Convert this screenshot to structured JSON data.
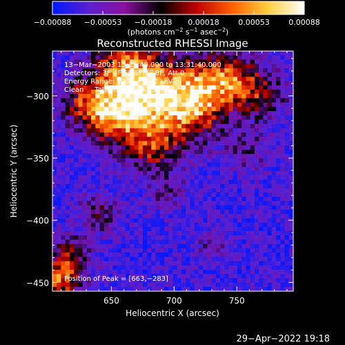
{
  "chart_data": {
    "type": "heatmap",
    "title": "Reconstructed RHESSI Image",
    "xlabel": "Heliocentric X (arcsec)",
    "ylabel": "Heliocentric Y (arcsec)",
    "xlim": [
      603,
      795
    ],
    "ylim": [
      -457,
      -264
    ],
    "xticks": [
      650,
      700,
      750
    ],
    "yticks": [
      -300,
      -350,
      -400,
      -450
    ],
    "xticklabels": [
      "650",
      "700",
      "750"
    ],
    "yticklabels": [
      "−300",
      "−350",
      "−400",
      "−450"
    ],
    "colorbar": {
      "range": [
        -0.00088,
        0.00088
      ],
      "ticks": [
        "−0.00088",
        "−0.00053",
        "−0.00018",
        "0.00018",
        "0.00053",
        "0.00088"
      ],
      "label_main": "(photons cm",
      "label_exp1": "−2",
      "label_mid1": " s",
      "label_exp2": "−1",
      "label_mid2": " asec",
      "label_exp3": "−2",
      "label_end": ")",
      "colors": [
        "#0018ff",
        "#5a20d0",
        "#8a10a0",
        "#000000",
        "#c00000",
        "#ff6000",
        "#ffd040",
        "#ffffff"
      ]
    },
    "annotations": [
      "13−Mar−2003 13:25:40.000 to 13:31:40.000",
      "Detectors: 3F 4F 5F 6F 7F 8F, Att 0",
      "Energy Range: 12.0 − 25.0 keV",
      "Clean     Total counts: 4.13E+04"
    ],
    "peak_label": "Position of Peak = [663,−283]",
    "peak": [
      663,
      -283
    ],
    "grid": "off",
    "legend": "colorbar-top"
  },
  "footer": {
    "timestamp": "29−Apr−2022 19:18"
  }
}
